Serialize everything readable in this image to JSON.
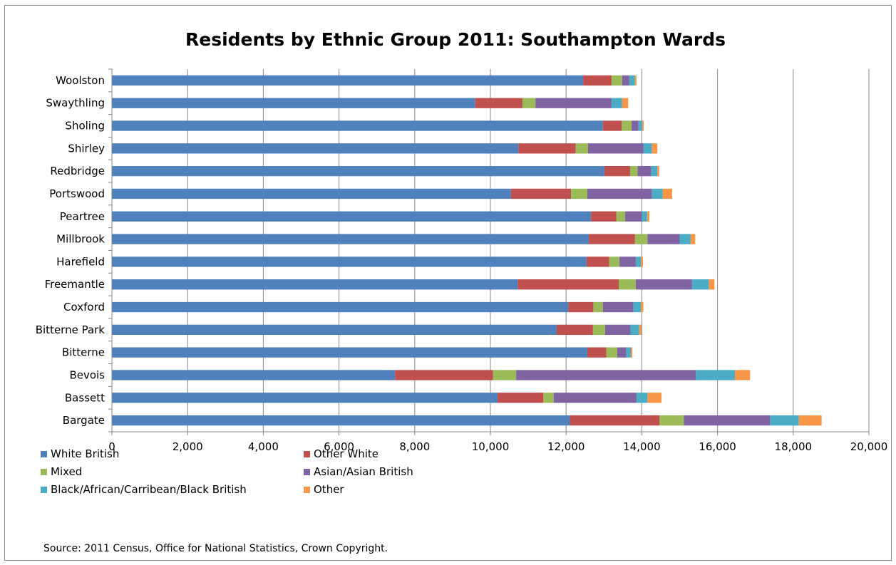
{
  "chart_data": {
    "type": "bar",
    "orientation": "horizontal",
    "stacked": true,
    "title": "Residents by Ethnic Group 2011: Southampton Wards",
    "source": "Source:  2011 Census, Office for National Statistics, Crown Copyright.",
    "xlim": [
      0,
      20000
    ],
    "x_ticks": [
      0,
      2000,
      4000,
      6000,
      8000,
      10000,
      12000,
      14000,
      16000,
      18000,
      20000
    ],
    "x_tick_labels": [
      "0",
      "2,000",
      "4,000",
      "6,000",
      "8,000",
      "10,000",
      "12,000",
      "14,000",
      "16,000",
      "18,000",
      "20,000"
    ],
    "grid": "vertical",
    "legend_position": "bottom",
    "categories": [
      "Woolston",
      "Swaythling",
      "Sholing",
      "Shirley",
      "Redbridge",
      "Portswood",
      "Peartree",
      "Millbrook",
      "Harefield",
      "Freemantle",
      "Coxford",
      "Bitterne Park",
      "Bitterne",
      "Bevois",
      "Bassett",
      "Bargate"
    ],
    "series": [
      {
        "name": "White British",
        "color": "#4f81bd",
        "values": [
          12450,
          9600,
          12970,
          10740,
          13010,
          10540,
          12660,
          12600,
          12540,
          10720,
          12060,
          11750,
          12560,
          7480,
          10190,
          12100
        ]
      },
      {
        "name": "Other White",
        "color": "#c0504d",
        "values": [
          750,
          1250,
          500,
          1510,
          680,
          1590,
          670,
          1220,
          600,
          2670,
          660,
          960,
          500,
          2590,
          1210,
          2370
        ]
      },
      {
        "name": "Mixed",
        "color": "#9bbb59",
        "values": [
          280,
          340,
          260,
          330,
          200,
          430,
          230,
          330,
          270,
          450,
          250,
          320,
          290,
          610,
          270,
          640
        ]
      },
      {
        "name": "Asian/Asian British",
        "color": "#8064a2",
        "values": [
          190,
          2010,
          180,
          1460,
          360,
          1710,
          440,
          850,
          430,
          1480,
          810,
          670,
          240,
          4750,
          2190,
          2280
        ]
      },
      {
        "name": "Black/African/Carribean/Black British",
        "color": "#4bacc6",
        "values": [
          150,
          280,
          100,
          230,
          160,
          280,
          140,
          290,
          140,
          450,
          200,
          230,
          120,
          1030,
          290,
          760
        ]
      },
      {
        "name": "Other",
        "color": "#f79646",
        "values": [
          40,
          160,
          40,
          140,
          50,
          250,
          60,
          120,
          50,
          150,
          60,
          60,
          40,
          400,
          370,
          600
        ]
      }
    ]
  }
}
